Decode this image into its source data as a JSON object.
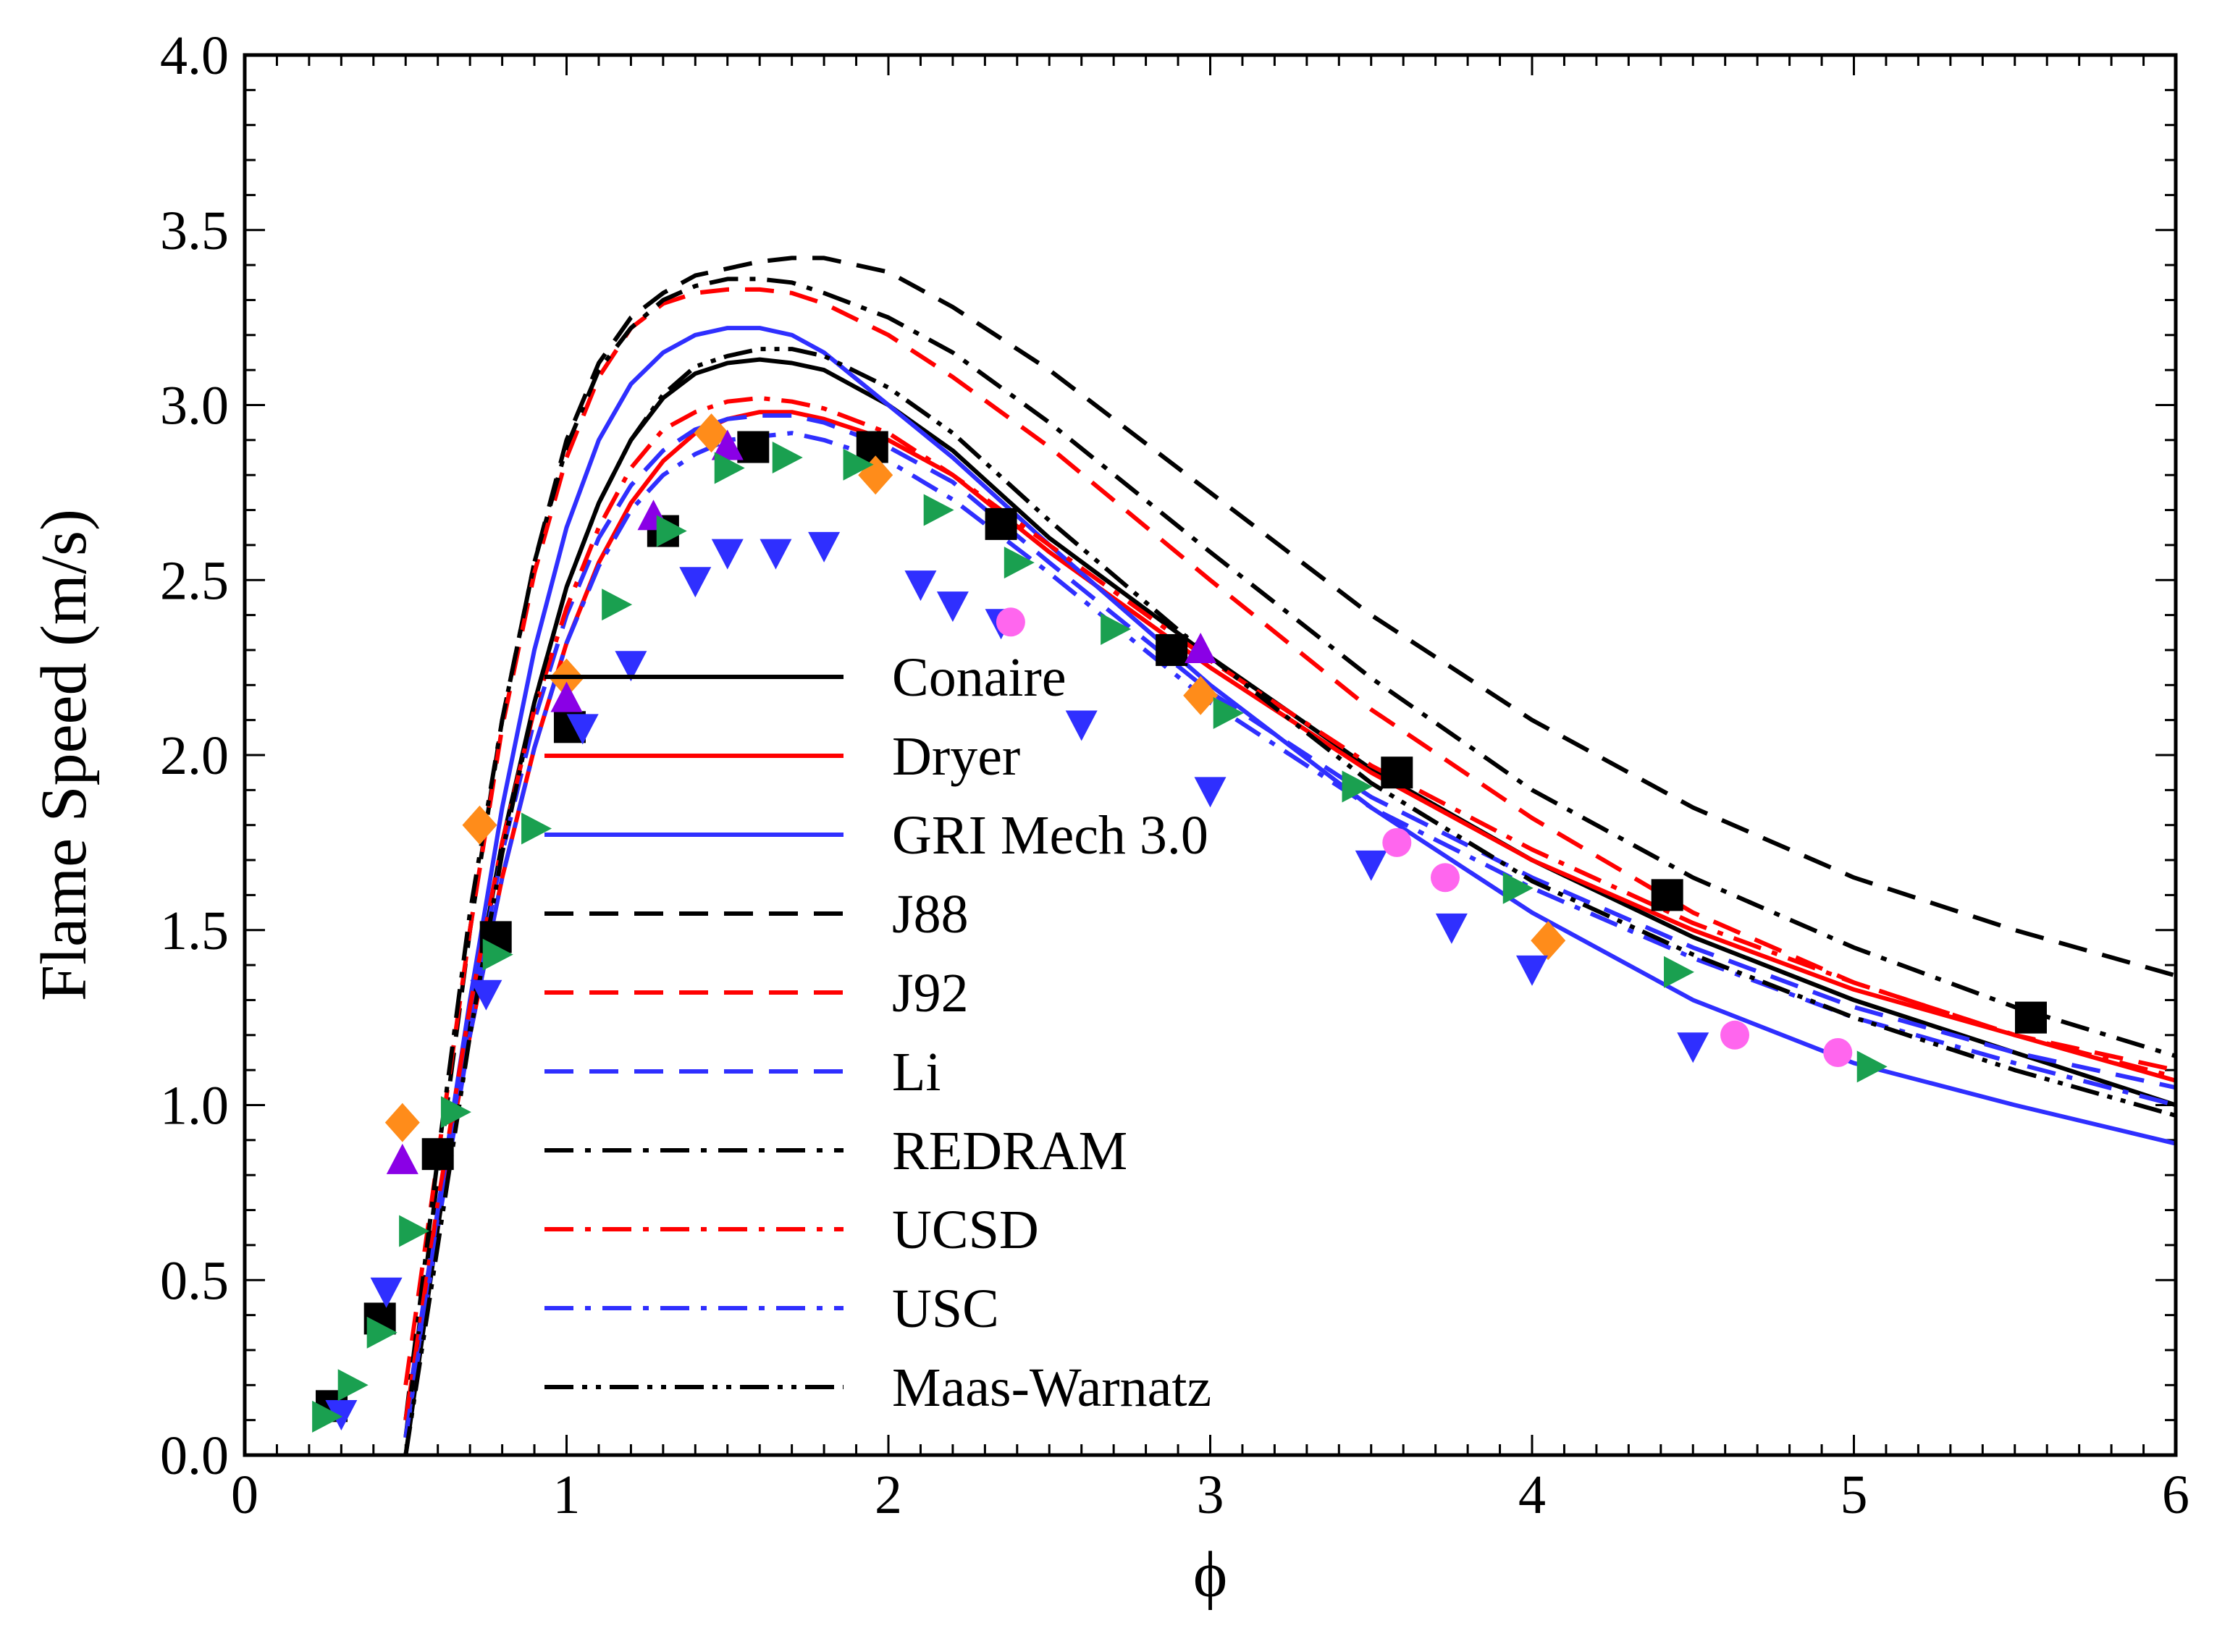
{
  "chart_data": {
    "type": "line",
    "title": "",
    "xlabel": "ϕ",
    "ylabel": "Flame Speed (m/s)",
    "xlim": [
      0,
      6
    ],
    "ylim": [
      0,
      4
    ],
    "x_ticks": [
      "0",
      "1",
      "2",
      "3",
      "4",
      "5",
      "6"
    ],
    "x_tick_values": [
      0,
      1,
      2,
      3,
      4,
      5,
      6
    ],
    "y_ticks": [
      "0.0",
      "0.5",
      "1.0",
      "1.5",
      "2.0",
      "2.5",
      "3.0",
      "3.5",
      "4.0"
    ],
    "y_tick_values": [
      0,
      0.5,
      1.0,
      1.5,
      2.0,
      2.5,
      3.0,
      3.5,
      4.0
    ],
    "legend_position": "center",
    "series": [
      {
        "name": "Conaire",
        "color": "#000000",
        "dash": "solid",
        "x": [
          0.5,
          0.6,
          0.7,
          0.8,
          0.9,
          1.0,
          1.1,
          1.2,
          1.3,
          1.4,
          1.5,
          1.6,
          1.7,
          1.8,
          2.0,
          2.2,
          2.5,
          3.0,
          3.5,
          4.0,
          4.5,
          5.0,
          5.5,
          6.0
        ],
        "y": [
          0.0,
          0.65,
          1.25,
          1.75,
          2.15,
          2.48,
          2.72,
          2.9,
          3.02,
          3.09,
          3.12,
          3.13,
          3.12,
          3.1,
          3.0,
          2.87,
          2.62,
          2.28,
          1.96,
          1.7,
          1.48,
          1.3,
          1.15,
          1.0
        ]
      },
      {
        "name": "Dryer",
        "color": "#ff0000",
        "dash": "solid",
        "x": [
          0.5,
          0.6,
          0.7,
          0.8,
          0.9,
          1.0,
          1.1,
          1.2,
          1.3,
          1.4,
          1.5,
          1.6,
          1.7,
          1.8,
          2.0,
          2.2,
          2.5,
          3.0,
          3.5,
          4.0,
          4.5,
          5.0,
          5.5,
          6.0
        ],
        "y": [
          0.1,
          0.7,
          1.2,
          1.65,
          2.02,
          2.32,
          2.55,
          2.72,
          2.84,
          2.92,
          2.96,
          2.98,
          2.98,
          2.96,
          2.9,
          2.8,
          2.58,
          2.25,
          1.95,
          1.7,
          1.5,
          1.33,
          1.2,
          1.07
        ]
      },
      {
        "name": "GRI Mech 3.0",
        "color": "#2f2fff",
        "dash": "solid",
        "x": [
          0.5,
          0.6,
          0.7,
          0.8,
          0.9,
          1.0,
          1.1,
          1.2,
          1.3,
          1.4,
          1.5,
          1.6,
          1.7,
          1.8,
          2.0,
          2.2,
          2.5,
          3.0,
          3.5,
          4.0,
          4.5,
          5.0,
          5.5,
          6.0
        ],
        "y": [
          0.05,
          0.7,
          1.3,
          1.85,
          2.3,
          2.65,
          2.9,
          3.06,
          3.15,
          3.2,
          3.22,
          3.22,
          3.2,
          3.15,
          3.0,
          2.85,
          2.6,
          2.2,
          1.85,
          1.55,
          1.3,
          1.12,
          1.0,
          0.89
        ]
      },
      {
        "name": "J88",
        "color": "#000000",
        "dash": "dashed",
        "x": [
          0.5,
          0.6,
          0.7,
          0.8,
          0.9,
          1.0,
          1.1,
          1.2,
          1.3,
          1.4,
          1.5,
          1.6,
          1.7,
          1.8,
          2.0,
          2.2,
          2.5,
          3.0,
          3.5,
          4.0,
          4.5,
          5.0,
          5.5,
          6.0
        ],
        "y": [
          0.05,
          0.8,
          1.5,
          2.1,
          2.55,
          2.9,
          3.12,
          3.25,
          3.32,
          3.37,
          3.39,
          3.41,
          3.42,
          3.42,
          3.38,
          3.28,
          3.1,
          2.75,
          2.4,
          2.1,
          1.85,
          1.65,
          1.5,
          1.37
        ]
      },
      {
        "name": "J92",
        "color": "#ff0000",
        "dash": "dashed",
        "x": [
          0.5,
          0.6,
          0.7,
          0.8,
          0.9,
          1.0,
          1.1,
          1.2,
          1.3,
          1.4,
          1.5,
          1.6,
          1.7,
          1.8,
          2.0,
          2.2,
          2.5,
          3.0,
          3.5,
          4.0,
          4.5,
          5.0,
          5.5,
          6.0
        ],
        "y": [
          0.2,
          0.85,
          1.5,
          2.08,
          2.52,
          2.85,
          3.08,
          3.22,
          3.29,
          3.32,
          3.33,
          3.33,
          3.32,
          3.29,
          3.2,
          3.08,
          2.88,
          2.5,
          2.13,
          1.82,
          1.55,
          1.35,
          1.2,
          1.1
        ]
      },
      {
        "name": "Li",
        "color": "#2f2fff",
        "dash": "dashed",
        "x": [
          0.5,
          0.6,
          0.7,
          0.8,
          0.9,
          1.0,
          1.1,
          1.2,
          1.3,
          1.4,
          1.5,
          1.6,
          1.7,
          1.8,
          2.0,
          2.2,
          2.5,
          3.0,
          3.5,
          4.0,
          4.5,
          5.0,
          5.5,
          6.0
        ],
        "y": [
          0.1,
          0.7,
          1.25,
          1.72,
          2.1,
          2.4,
          2.62,
          2.77,
          2.87,
          2.93,
          2.96,
          2.97,
          2.97,
          2.95,
          2.88,
          2.78,
          2.55,
          2.18,
          1.88,
          1.65,
          1.45,
          1.28,
          1.15,
          1.05
        ]
      },
      {
        "name": "REDRAM",
        "color": "#000000",
        "dash": "dashdot",
        "x": [
          0.5,
          0.6,
          0.7,
          0.8,
          0.9,
          1.0,
          1.1,
          1.2,
          1.3,
          1.4,
          1.5,
          1.6,
          1.7,
          1.8,
          2.0,
          2.2,
          2.5,
          3.0,
          3.5,
          4.0,
          4.5,
          5.0,
          5.5,
          6.0
        ],
        "y": [
          0.1,
          0.85,
          1.55,
          2.1,
          2.55,
          2.88,
          3.1,
          3.22,
          3.3,
          3.34,
          3.36,
          3.36,
          3.35,
          3.32,
          3.25,
          3.15,
          2.95,
          2.58,
          2.22,
          1.9,
          1.65,
          1.45,
          1.28,
          1.14
        ]
      },
      {
        "name": "UCSD",
        "color": "#ff0000",
        "dash": "dashdot",
        "x": [
          0.5,
          0.6,
          0.7,
          0.8,
          0.9,
          1.0,
          1.1,
          1.2,
          1.3,
          1.4,
          1.5,
          1.6,
          1.7,
          1.8,
          2.0,
          2.2,
          2.5,
          3.0,
          3.5,
          4.0,
          4.5,
          5.0,
          5.5,
          6.0
        ],
        "y": [
          0.1,
          0.72,
          1.28,
          1.75,
          2.13,
          2.42,
          2.65,
          2.82,
          2.93,
          2.98,
          3.01,
          3.02,
          3.01,
          2.99,
          2.92,
          2.8,
          2.6,
          2.27,
          1.97,
          1.73,
          1.52,
          1.35,
          1.2,
          1.08
        ]
      },
      {
        "name": "USC",
        "color": "#2f2fff",
        "dash": "dashdot",
        "x": [
          0.5,
          0.6,
          0.7,
          0.8,
          0.9,
          1.0,
          1.1,
          1.2,
          1.3,
          1.4,
          1.5,
          1.6,
          1.7,
          1.8,
          2.0,
          2.2,
          2.5,
          3.0,
          3.5,
          4.0,
          4.5,
          5.0,
          5.5,
          6.0
        ],
        "y": [
          0.05,
          0.65,
          1.2,
          1.65,
          2.02,
          2.32,
          2.54,
          2.7,
          2.8,
          2.86,
          2.9,
          2.91,
          2.92,
          2.9,
          2.84,
          2.73,
          2.52,
          2.15,
          1.85,
          1.62,
          1.42,
          1.25,
          1.12,
          1.0
        ]
      },
      {
        "name": "Maas-Warnatz",
        "color": "#000000",
        "dash": "dashdotdot",
        "x": [
          0.5,
          0.6,
          0.7,
          0.8,
          0.9,
          1.0,
          1.1,
          1.2,
          1.3,
          1.4,
          1.5,
          1.6,
          1.7,
          1.8,
          2.0,
          2.2,
          2.5,
          3.0,
          3.5,
          4.0,
          4.5,
          5.0,
          5.5,
          6.0
        ],
        "y": [
          0.0,
          0.6,
          1.2,
          1.72,
          2.15,
          2.48,
          2.72,
          2.9,
          3.03,
          3.11,
          3.14,
          3.16,
          3.16,
          3.14,
          3.05,
          2.92,
          2.67,
          2.28,
          1.92,
          1.64,
          1.43,
          1.25,
          1.1,
          0.97
        ]
      }
    ],
    "scatter_series": [
      {
        "name": "exp-black-squares",
        "marker": "square",
        "color": "#000000",
        "x": [
          0.27,
          0.42,
          0.6,
          0.78,
          1.01,
          1.3,
          1.58,
          1.95,
          2.35,
          2.88,
          3.58,
          4.42,
          5.55
        ],
        "y": [
          0.14,
          0.39,
          0.86,
          1.48,
          2.08,
          2.64,
          2.88,
          2.88,
          2.66,
          2.3,
          1.95,
          1.6,
          1.25
        ]
      },
      {
        "name": "exp-orange-diamonds",
        "marker": "diamond",
        "color": "#ff8c1a",
        "x": [
          0.49,
          0.73,
          1.0,
          1.45,
          1.96,
          2.97,
          4.05
        ],
        "y": [
          0.95,
          1.8,
          2.22,
          2.92,
          2.8,
          2.17,
          1.47
        ]
      },
      {
        "name": "exp-purple-triangles",
        "marker": "triangle-up",
        "color": "#8a00e6",
        "x": [
          0.49,
          1.0,
          1.27,
          1.5,
          2.97
        ],
        "y": [
          0.84,
          2.16,
          2.68,
          2.88,
          2.3
        ]
      },
      {
        "name": "exp-blue-triangles-down",
        "marker": "triangle-down",
        "color": "#2f2fff",
        "x": [
          0.3,
          0.44,
          0.75,
          1.05,
          1.2,
          1.4,
          1.5,
          1.65,
          1.8,
          2.1,
          2.2,
          2.35,
          2.6,
          3.0,
          3.5,
          3.75,
          4.0,
          4.5
        ],
        "y": [
          0.12,
          0.47,
          1.32,
          2.08,
          2.26,
          2.5,
          2.58,
          2.58,
          2.6,
          2.49,
          2.43,
          2.38,
          2.09,
          1.9,
          1.69,
          1.51,
          1.39,
          1.17
        ]
      },
      {
        "name": "exp-green-triangles-right",
        "marker": "triangle-right",
        "color": "#1aa050",
        "x": [
          0.25,
          0.33,
          0.42,
          0.52,
          0.65,
          0.78,
          0.9,
          1.15,
          1.32,
          1.5,
          1.68,
          1.9,
          2.15,
          2.4,
          2.7,
          3.05,
          3.45,
          3.95,
          4.45,
          5.05
        ],
        "y": [
          0.11,
          0.2,
          0.35,
          0.64,
          0.98,
          1.43,
          1.79,
          2.43,
          2.64,
          2.82,
          2.85,
          2.83,
          2.7,
          2.55,
          2.36,
          2.12,
          1.91,
          1.62,
          1.38,
          1.11
        ]
      },
      {
        "name": "exp-magenta-circles",
        "marker": "circle",
        "color": "#ff66ee",
        "x": [
          2.38,
          3.58,
          3.73,
          4.63,
          4.95
        ],
        "y": [
          2.38,
          1.75,
          1.65,
          1.2,
          1.15
        ]
      }
    ]
  }
}
